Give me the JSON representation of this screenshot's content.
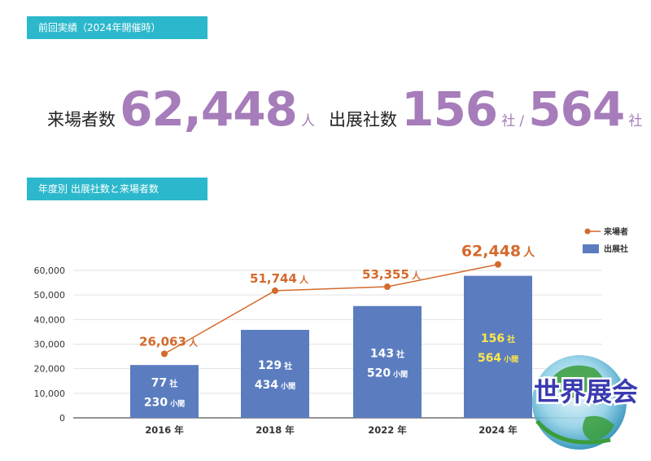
{
  "header": {
    "previous_results_label": "前回実績（2024年開催時）",
    "yearly_label": "年度別 出展社数と来場者数"
  },
  "stats": {
    "visitors_caption": "来場者数",
    "visitors_value": "62,448",
    "visitors_unit": "人",
    "exhibitors_caption": "出展社数",
    "exhibitors_value": "156",
    "exhibitors_unit": "社",
    "exhibitors_sep": "/",
    "booths_value": "564",
    "booths_unit": "社"
  },
  "colors": {
    "accent_purple": "#a67cba",
    "label_teal": "#2cb8cc",
    "bar_blue": "#5b7dc0",
    "line_orange": "#d46a2c",
    "highlight_yellow": "#ffe84a"
  },
  "logo": {
    "text": "世界展会"
  },
  "chart_data": {
    "type": "bar",
    "categories": [
      "2016 年",
      "2018 年",
      "2022 年",
      "2024 年"
    ],
    "ylim": [
      0,
      60000
    ],
    "yticks": [
      "0",
      "10,000",
      "20,000",
      "30,000",
      "40,000",
      "50,000",
      "60,000"
    ],
    "grid": true,
    "legend_position": "top-right",
    "series": [
      {
        "name": "来場者",
        "type": "line",
        "values": [
          26063,
          51744,
          53355,
          62448
        ],
        "labels": [
          "26,063",
          "51,744",
          "53,355",
          "62,448"
        ],
        "unit": "人"
      },
      {
        "name": "出展社",
        "type": "bar",
        "values": [
          21500,
          35800,
          45500,
          57800
        ],
        "companies": [
          "77",
          "129",
          "143",
          "156"
        ],
        "companies_unit": "社",
        "booths": [
          "230",
          "434",
          "520",
          "564"
        ],
        "booths_unit": "小間"
      }
    ]
  }
}
